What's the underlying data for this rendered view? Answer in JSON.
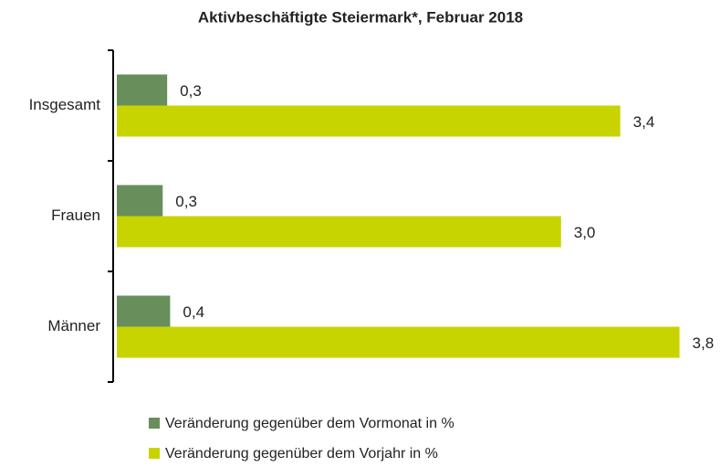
{
  "chart_data": {
    "type": "hbar",
    "title": "Aktivbeschäftigte Steiermark*, Februar 2018",
    "categories": [
      "Insgesamt",
      "Frauen",
      "Männer"
    ],
    "series": [
      {
        "name": "Veränderung gegenüber dem Vormonat in %",
        "color": "#688f5b",
        "values": [
          0.34,
          0.31,
          0.36
        ],
        "value_labels": [
          "0,3",
          "0,3",
          "0,4"
        ]
      },
      {
        "name": "Veränderung gegenüber dem Vorjahr in %",
        "color": "#c8d400",
        "values": [
          3.4,
          3.0,
          3.8
        ],
        "value_labels": [
          "3,4",
          "3,0",
          "3,8"
        ]
      }
    ],
    "xlim": [
      0,
      4
    ]
  }
}
